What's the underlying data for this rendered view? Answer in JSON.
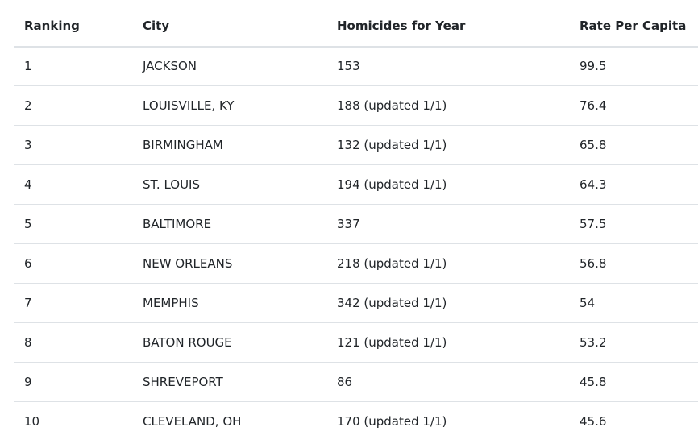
{
  "table": {
    "headers": [
      "Ranking",
      "City",
      "Homicides for Year",
      "Rate Per Capita"
    ],
    "rows": [
      [
        "1",
        "JACKSON",
        "153",
        "99.5"
      ],
      [
        "2",
        "LOUISVILLE, KY",
        "188 (updated 1/1)",
        "76.4"
      ],
      [
        "3",
        "BIRMINGHAM",
        "132 (updated 1/1)",
        "65.8"
      ],
      [
        "4",
        "ST. LOUIS",
        "194 (updated 1/1)",
        "64.3"
      ],
      [
        "5",
        "BALTIMORE",
        "337",
        "57.5"
      ],
      [
        "6",
        "NEW ORLEANS",
        "218 (updated 1/1)",
        "56.8"
      ],
      [
        "7",
        "MEMPHIS",
        "342 (updated 1/1)",
        "54"
      ],
      [
        "8",
        "BATON ROUGE",
        "121 (updated 1/1)",
        "53.2"
      ],
      [
        "9",
        "SHREVEPORT",
        "86",
        "45.8"
      ],
      [
        "10",
        "CLEVELAND, OH",
        "170 (updated 1/1)",
        "45.6"
      ]
    ]
  },
  "colors": {
    "text": "#212529",
    "border": "#dee2e6",
    "background": "#ffffff"
  }
}
